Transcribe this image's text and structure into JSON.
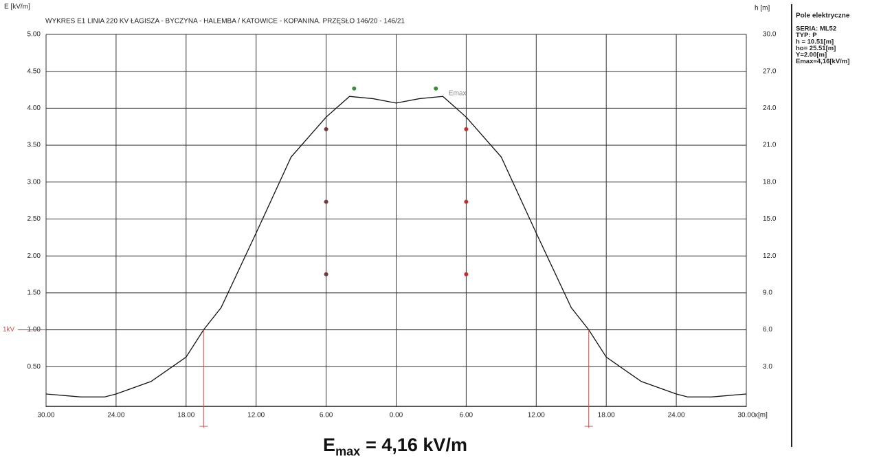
{
  "chart_data": {
    "type": "line",
    "title": "WYKRES E1  LINIA 220 KV ŁAGISZA - BYCZYNA - HALEMBA / KATOWICE - KOPANINA. PRZĘSŁO 146/20 - 146/21",
    "y_label": "E [kV/m]",
    "y2_label": "h [m]",
    "x_label": "x[m]",
    "x": [
      -30,
      -27,
      -25,
      -24,
      -21,
      -18,
      -16.5,
      -15,
      -12,
      -9,
      -6,
      -4,
      -2,
      0,
      2,
      4,
      6,
      9,
      12,
      15,
      16.5,
      18,
      21,
      24,
      25,
      27,
      30
    ],
    "series": [
      {
        "color": "#111111",
        "values": [
          0.13,
          0.09,
          0.09,
          0.13,
          0.3,
          0.63,
          1.0,
          1.3,
          2.31,
          3.34,
          3.88,
          4.16,
          4.13,
          4.07,
          4.13,
          4.16,
          3.88,
          3.34,
          2.31,
          1.3,
          1.0,
          0.63,
          0.3,
          0.13,
          0.09,
          0.09,
          0.13
        ]
      }
    ],
    "conductors": [
      {
        "color": "#6e3b3b",
        "axis": "y2",
        "x": [
          -6,
          -6,
          -6
        ],
        "values": [
          22.3,
          16.4,
          10.51
        ]
      },
      {
        "color": "#b83232",
        "axis": "y2",
        "x": [
          6,
          6,
          6
        ],
        "values": [
          22.3,
          16.4,
          10.51
        ]
      },
      {
        "color": "#3d8a3d",
        "axis": "y2",
        "x": [
          -3.6,
          3.4
        ],
        "values": [
          25.6,
          25.6
        ]
      }
    ],
    "xlim": [
      -30,
      30
    ],
    "xticks": [
      {
        "value": -30,
        "label": "30.00"
      },
      {
        "value": -24,
        "label": "24.00"
      },
      {
        "value": -18,
        "label": "18.00"
      },
      {
        "value": -12,
        "label": "12.00"
      },
      {
        "value": -6,
        "label": "6.00"
      },
      {
        "value": 0,
        "label": "0.00"
      },
      {
        "value": 6,
        "label": "6.00"
      },
      {
        "value": 12,
        "label": "12.00"
      },
      {
        "value": 18,
        "label": "18.00"
      },
      {
        "value": 24,
        "label": "24.00"
      },
      {
        "value": 30,
        "label": "30.00"
      }
    ],
    "ylim": [
      0,
      5
    ],
    "yticks": [
      {
        "value": 0.5,
        "label": "0.50"
      },
      {
        "value": 1,
        "label": "1.00"
      },
      {
        "value": 1.5,
        "label": "1.50"
      },
      {
        "value": 2,
        "label": "2.00"
      },
      {
        "value": 2.5,
        "label": "2.50"
      },
      {
        "value": 3,
        "label": "3.00"
      },
      {
        "value": 3.5,
        "label": "3.50"
      },
      {
        "value": 4,
        "label": "4.00"
      },
      {
        "value": 4.5,
        "label": "4.50"
      },
      {
        "value": 5,
        "label": "5.00"
      }
    ],
    "y2lim": [
      0,
      30
    ],
    "y2ticks": [
      {
        "value": 3,
        "label": "3.0"
      },
      {
        "value": 6,
        "label": "6.0"
      },
      {
        "value": 9,
        "label": "9.0"
      },
      {
        "value": 12,
        "label": "12.0"
      },
      {
        "value": 15,
        "label": "15.0"
      },
      {
        "value": 18,
        "label": "18.0"
      },
      {
        "value": 21,
        "label": "21.0"
      },
      {
        "value": 24,
        "label": "24.0"
      },
      {
        "value": 27,
        "label": "27.0"
      },
      {
        "value": 30,
        "label": "30.0"
      }
    ],
    "grid": true,
    "annotations": {
      "emax_label": "Emax",
      "emax_x": 4.5,
      "emax_y": 4.2,
      "threshold_label": "1kV",
      "threshold": 1,
      "crossings": [
        -16.5,
        16.5
      ]
    },
    "info": {
      "title": "Pole elektryczne",
      "lines": [
        "SERIA: ML52",
        "TYP: P",
        "h = 10.51[m]",
        "ho= 25.51[m]",
        "Y=2.00[m]",
        "Emax=4,16[kV/m]"
      ]
    },
    "footer": {
      "main": "E",
      "sub": "max",
      "rest": "= 4,16 kV/m"
    }
  }
}
